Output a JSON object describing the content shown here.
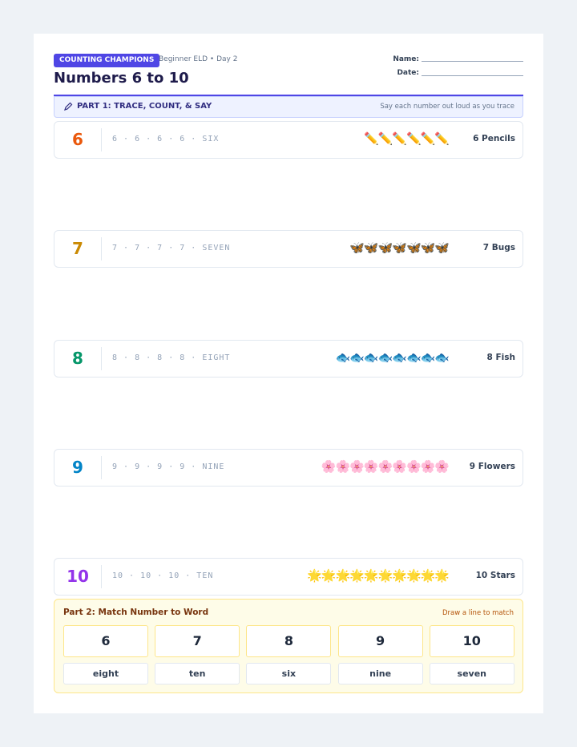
{
  "header": {
    "badge": "COUNTING CHAMPIONS",
    "subtitle": "Beginner ELD • Day 2",
    "title": "Numbers 6 to 10",
    "fields": [
      "Name:",
      "Date:"
    ]
  },
  "part1": {
    "title": "PART 1: TRACE, COUNT, & SAY",
    "hint": "Say each number out loud as you trace",
    "rows": [
      {
        "numeral": "6",
        "trace": "6 · 6 · 6 · 6 · SIX",
        "icons": "✏️✏️✏️✏️✏️✏️",
        "caption": "6 Pencils"
      },
      {
        "numeral": "7",
        "trace": "7 · 7 · 7 · 7 · SEVEN",
        "icons": "🦋🦋🦋🦋🦋🦋🦋",
        "caption": "7 Bugs"
      },
      {
        "numeral": "8",
        "trace": "8 · 8 · 8 · 8 · EIGHT",
        "icons": "🐟🐟🐟🐟🐟🐟🐟🐟",
        "caption": "8 Fish"
      },
      {
        "numeral": "9",
        "trace": "9 · 9 · 9 · 9 · NINE",
        "icons": "🌸🌸🌸🌸🌸🌸🌸🌸🌸",
        "caption": "9 Flowers"
      },
      {
        "numeral": "10",
        "trace": "10 · 10 · 10 · TEN",
        "icons": "🌟🌟🌟🌟🌟🌟🌟🌟🌟🌟",
        "caption": "10 Stars"
      }
    ]
  },
  "part2": {
    "title": "Part 2: Match Number to Word",
    "hint": "Draw a line to match",
    "numbers": [
      "6",
      "7",
      "8",
      "9",
      "10"
    ],
    "words": [
      "eight",
      "ten",
      "six",
      "nine",
      "seven"
    ]
  }
}
